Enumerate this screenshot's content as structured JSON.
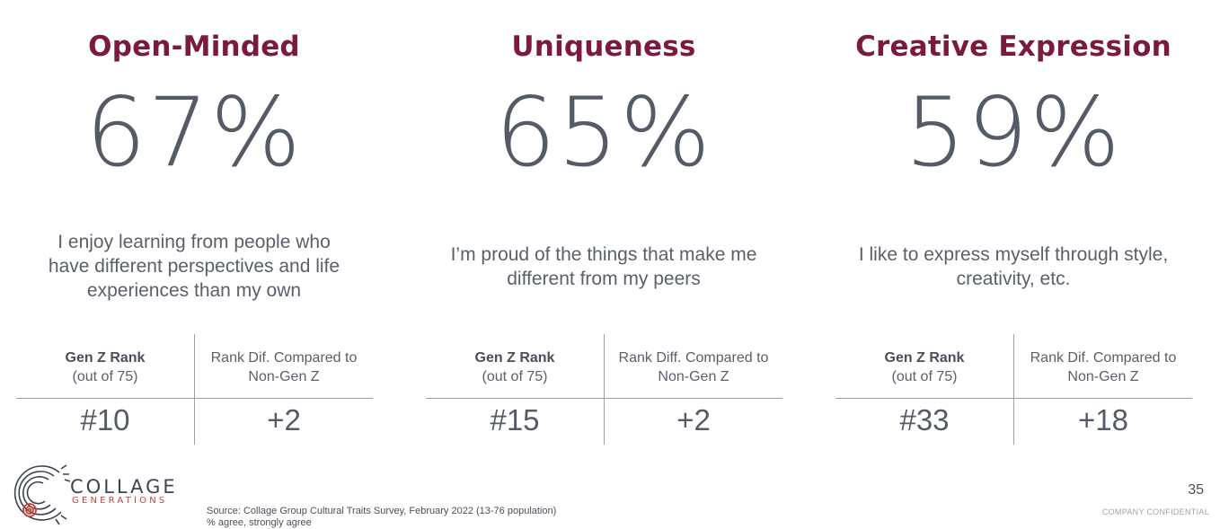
{
  "columns": [
    {
      "title": "Open-Minded",
      "percent": "67%",
      "statement_lines": [
        "I enjoy learning from people who",
        "have different perspectives and life",
        "experiences than my own"
      ],
      "rank_header_bold": "Gen Z Rank",
      "rank_header_sub": "(out of 75)",
      "diff_header_lines": [
        "Rank Dif. Compared to",
        "Non-Gen Z"
      ],
      "rank_value": "#10",
      "diff_value": "+2"
    },
    {
      "title": "Uniqueness",
      "percent": "65%",
      "statement_lines": [
        "I’m proud of the things that make me",
        "different from my peers"
      ],
      "rank_header_bold": "Gen Z Rank",
      "rank_header_sub": "(out of 75)",
      "diff_header_lines": [
        "Rank Diff. Compared to",
        "Non-Gen Z"
      ],
      "rank_value": "#15",
      "diff_value": "+2"
    },
    {
      "title": "Creative Expression",
      "percent": "59%",
      "statement_lines": [
        "I like to express myself through style,",
        "creativity, etc."
      ],
      "rank_header_bold": "Gen Z Rank",
      "rank_header_sub": "(out of 75)",
      "diff_header_lines": [
        "Rank Dif. Compared to",
        "Non-Gen Z"
      ],
      "rank_value": "#33",
      "diff_value": "+18"
    }
  ],
  "logo": {
    "icon": "collage-fingerprint-logo-icon",
    "line1": "COLLAGE",
    "line2": "GENERATIONS"
  },
  "footer": {
    "source_line1": "Source: Collage Group Cultural Traits Survey, February 2022 (13-76 population)",
    "source_line2": "% agree, strongly agree",
    "page_number": "35",
    "confidential": "COMPANY CONFIDENTIAL"
  },
  "colors": {
    "title": "#7b1a3e",
    "text": "#555b66",
    "logo_accent": "#c0473f"
  }
}
